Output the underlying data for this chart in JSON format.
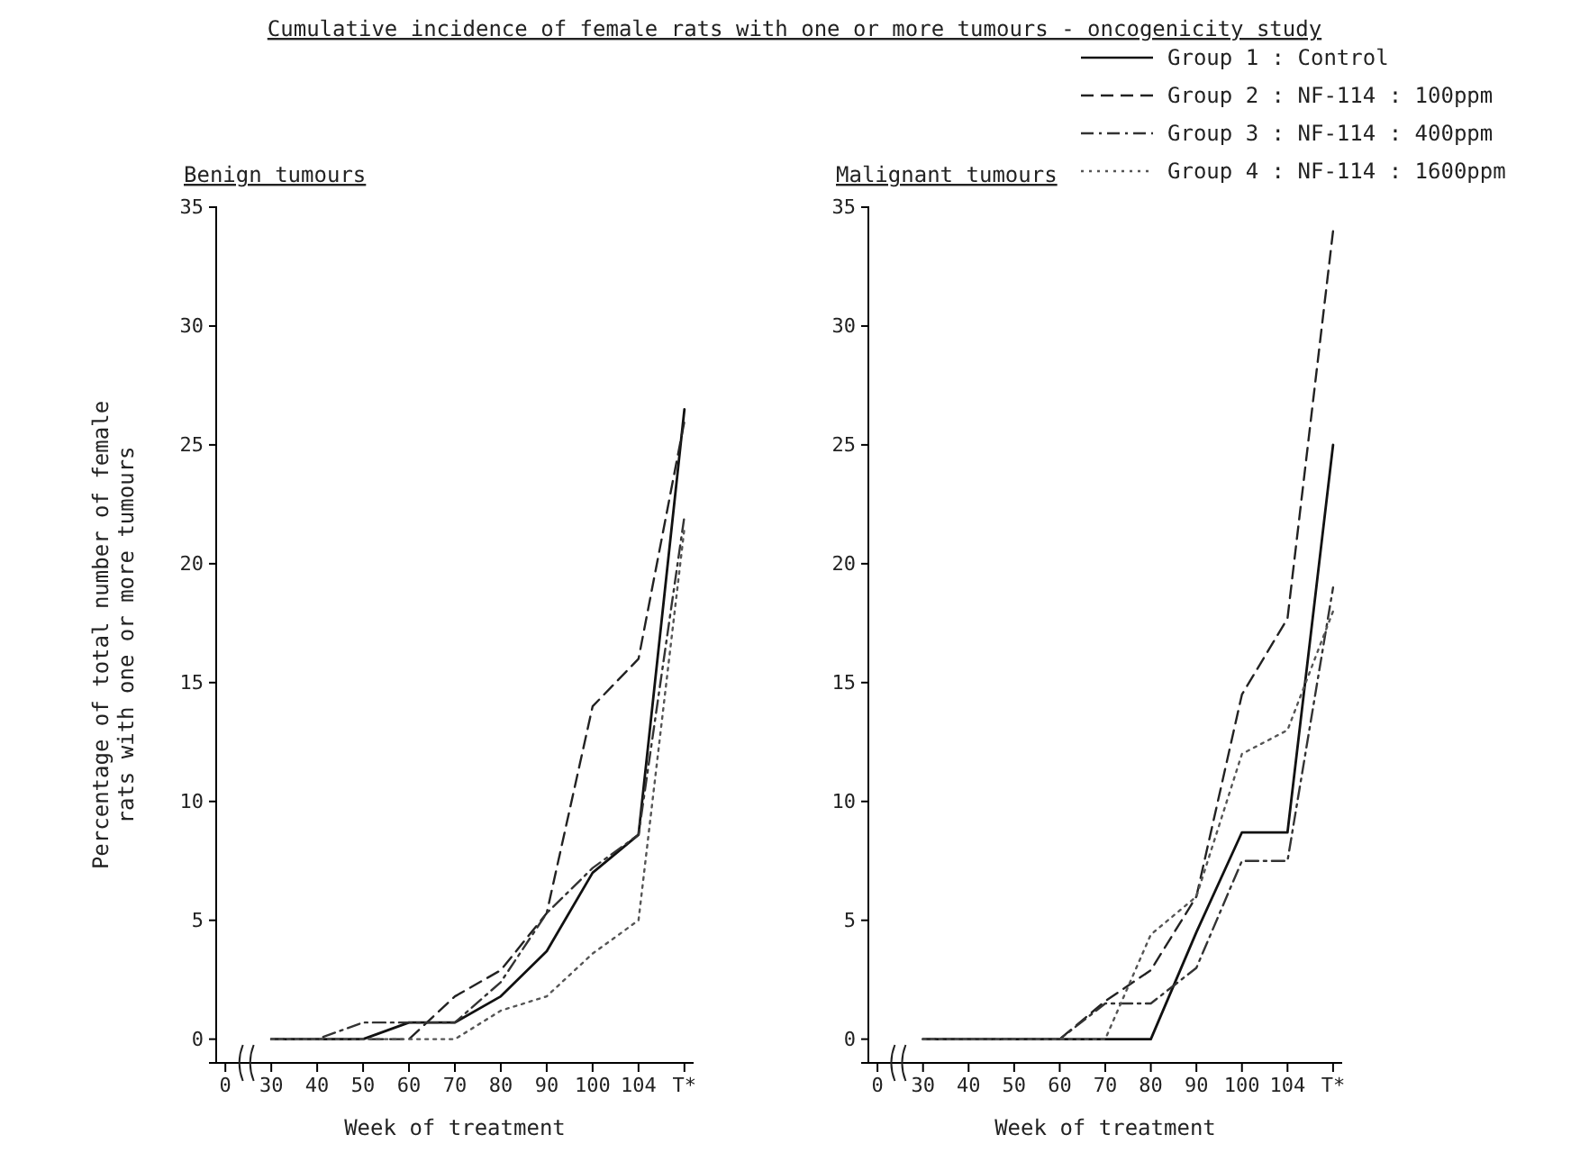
{
  "chart_data": [
    {
      "type": "line",
      "title": "Cumulative incidence of female rats with one or more tumours - oncogenicity study",
      "subtitle": "Benign tumours",
      "xlabel": "Week of treatment",
      "ylabel": "Percentage of total number of female rats with one or more tumours",
      "categories": [
        "0",
        "30",
        "40",
        "50",
        "60",
        "70",
        "80",
        "90",
        "100",
        "104",
        "T*"
      ],
      "ylim": [
        -1,
        35
      ],
      "yticks": [
        0,
        5,
        10,
        15,
        20,
        25,
        30,
        35
      ],
      "grid": false,
      "legend": "top right",
      "marker": "none",
      "series": [
        {
          "name": "Group 1 : Control",
          "color": "#111111",
          "line_style": "solid",
          "values": [
            null,
            0,
            0,
            0,
            0.7,
            0.7,
            1.8,
            3.7,
            7,
            8.6,
            26.5
          ]
        },
        {
          "name": "Group 2 : NF-114 : 100ppm",
          "color": "#222222",
          "line_style": "dashed",
          "values": [
            null,
            0,
            0,
            0,
            0,
            1.8,
            2.9,
            5.3,
            14,
            16,
            26
          ]
        },
        {
          "name": "Group 3 : NF-114 : 400ppm",
          "color": "#333333",
          "line_style": "dashdot",
          "values": [
            null,
            0,
            0,
            0.7,
            0.7,
            0.7,
            2.4,
            5.3,
            7.2,
            8.6,
            22
          ]
        },
        {
          "name": "Group 4 : NF-114 : 1600ppm",
          "color": "#555555",
          "line_style": "dotted",
          "values": [
            null,
            0,
            0,
            0,
            0,
            0,
            1.2,
            1.8,
            3.6,
            5,
            21.5
          ]
        }
      ]
    },
    {
      "type": "line",
      "subtitle": "Malignant tumours",
      "xlabel": "Week of treatment",
      "categories": [
        "0",
        "30",
        "40",
        "50",
        "60",
        "70",
        "80",
        "90",
        "100",
        "104",
        "T*"
      ],
      "ylim": [
        -1,
        35
      ],
      "yticks": [
        0,
        5,
        10,
        15,
        20,
        25,
        30,
        35
      ],
      "grid": false,
      "marker": "none",
      "series": [
        {
          "color": "#111111",
          "line_style": "solid",
          "values": [
            null,
            0,
            0,
            0,
            0,
            0,
            0,
            4.5,
            8.7,
            8.7,
            25
          ]
        },
        {
          "color": "#222222",
          "line_style": "dashed",
          "values": [
            null,
            0,
            0,
            0,
            0,
            1.6,
            2.9,
            6,
            14.5,
            17.7,
            34
          ]
        },
        {
          "color": "#333333",
          "line_style": "dashdot",
          "values": [
            null,
            0,
            0,
            0,
            0,
            1.5,
            1.5,
            3,
            7.5,
            7.5,
            19
          ]
        },
        {
          "color": "#555555",
          "line_style": "dotted",
          "values": [
            null,
            0,
            0,
            0,
            0,
            0,
            4.4,
            6,
            12,
            13,
            18
          ]
        }
      ]
    }
  ]
}
